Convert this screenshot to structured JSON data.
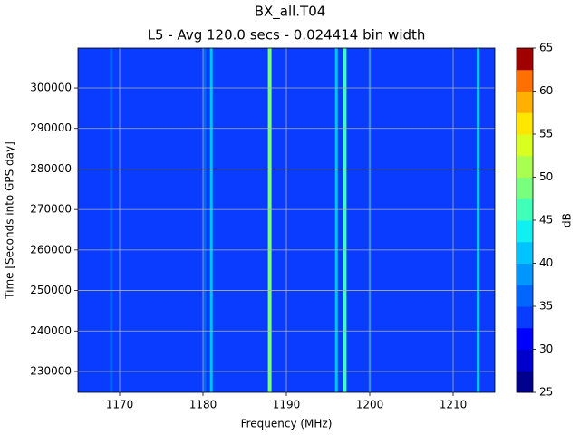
{
  "chart_data": {
    "type": "heatmap",
    "title": "BX_all.T04",
    "subtitle": "L5 - Avg 120.0 secs - 0.024414 bin width",
    "xlabel": "Frequency (MHz)",
    "ylabel": "Time [Seconds into GPS day]",
    "colorbar_label": "dB",
    "base_value": 33,
    "x": [
      1169,
      1180.2,
      1181,
      1188,
      1196,
      1197,
      1200,
      1213
    ],
    "values": [
      37,
      37,
      42,
      48,
      40,
      47,
      36,
      40
    ],
    "xlim": [
      1165,
      1215
    ],
    "xticks": [
      1170,
      1180,
      1190,
      1200,
      1210
    ],
    "ylim": [
      224850,
      309850
    ],
    "yticks": [
      230000,
      240000,
      250000,
      260000,
      270000,
      280000,
      290000,
      300000
    ],
    "clim": [
      25,
      65
    ],
    "cticks": [
      25,
      30,
      35,
      40,
      45,
      50,
      55,
      60,
      65
    ],
    "colors": [
      "#00008f",
      "#0000cd",
      "#0000ff",
      "#0a3cff",
      "#0066ff",
      "#0096ff",
      "#00c4ff",
      "#10f0f0",
      "#40ffb8",
      "#78ff80",
      "#a8ff50",
      "#d8ff20",
      "#ffe600",
      "#ffb000",
      "#ff7000",
      "#ff2800",
      "#a00000"
    ],
    "grid": true
  }
}
